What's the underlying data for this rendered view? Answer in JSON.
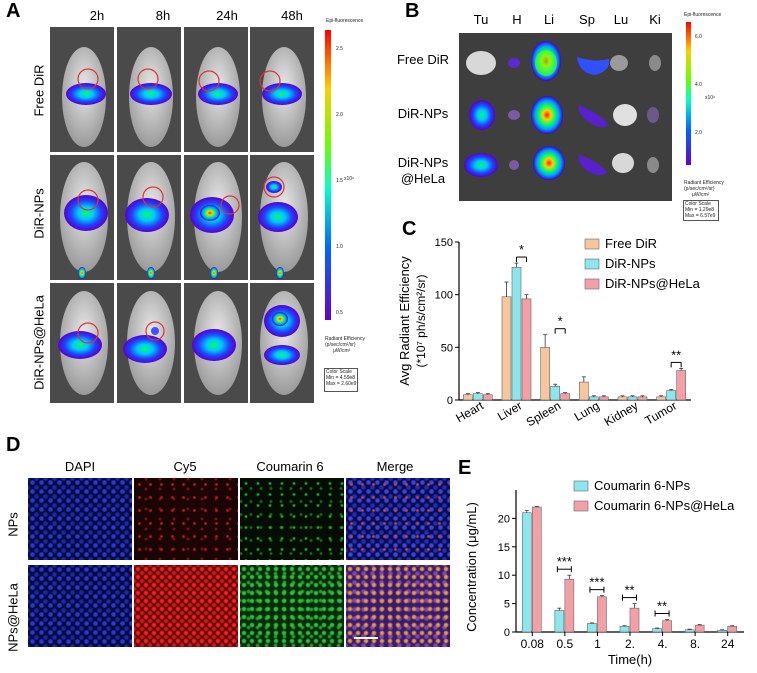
{
  "panel_labels": {
    "A": "A",
    "B": "B",
    "C": "C",
    "D": "D",
    "E": "E"
  },
  "panelA": {
    "times": [
      "2h",
      "8h",
      "24h",
      "48h"
    ],
    "rows": [
      "Free DiR",
      "DiR-NPs",
      "DiR-NPs@HeLa"
    ],
    "scale": {
      "title": "Epi-fluorescence",
      "ticks": [
        "2.5",
        "2.0",
        "1.5",
        "1.0",
        "0.5"
      ],
      "exponent": "x10⁹",
      "unit_line1": "Radiant Efficiency",
      "unit_line2": "(p/sec/cm²/sr)",
      "unit_line3": "μW/cm²",
      "colorscale_title": "Color Scale",
      "min": "Min = 4.59e8",
      "max": "Max = 2.60e9"
    }
  },
  "panelB": {
    "organs": [
      "Tu",
      "H",
      "Li",
      "Sp",
      "Lu",
      "Ki"
    ],
    "rows": [
      [
        "Free DiR"
      ],
      [
        "DiR-NPs"
      ],
      [
        "DiR-NPs",
        "@HeLa"
      ]
    ],
    "scale": {
      "title": "Epi-fluorescence",
      "ticks": [
        "6.0",
        "4.0",
        "2.0"
      ],
      "exponent": "x10⁹",
      "unit_line1": "Radiant Efficiency",
      "unit_line2": "(p/sec/cm²/sr)",
      "unit_line3": "μW/cm²",
      "colorscale_title": "Color Scale",
      "min": "Min = 1.29e8",
      "max": "Max = 6.57e9"
    }
  },
  "panelD": {
    "columns": [
      "DAPI",
      "Cy5",
      "Coumarin 6",
      "Merge"
    ],
    "rows": [
      "NPs",
      "NPs@HeLa"
    ]
  },
  "chart_data": [
    {
      "type": "bar",
      "panel": "C",
      "ylabel": "Avg Radiant Efficiency",
      "ylabel_unit": "(*10⁷ ph/s/cm²/sr)",
      "ylim": [
        0,
        150
      ],
      "yticks": [
        "0",
        "50",
        "100",
        "150"
      ],
      "categories": [
        "Heart",
        "Liver",
        "Spleen",
        "Lung",
        "Kidney",
        "Tumor"
      ],
      "series": [
        {
          "name": "Free DiR",
          "color": "#f7c69e",
          "values": [
            5,
            98,
            50,
            17,
            3,
            3
          ],
          "errors": [
            1,
            14,
            12,
            5,
            1,
            1
          ]
        },
        {
          "name": "DiR-NPs",
          "color": "#8be6ee",
          "values": [
            6,
            126,
            13,
            3,
            3,
            9
          ],
          "errors": [
            1,
            4,
            2,
            1,
            1,
            1
          ]
        },
        {
          "name": "DiR-NPs@HeLa",
          "color": "#f2a0a6",
          "values": [
            5,
            96,
            6,
            3,
            3,
            28
          ],
          "errors": [
            1,
            4,
            1,
            1,
            1,
            2
          ]
        }
      ],
      "significance": [
        {
          "category": "Liver",
          "label": "*"
        },
        {
          "category": "Spleen",
          "label": "*"
        },
        {
          "category": "Tumor",
          "label": "**"
        }
      ]
    },
    {
      "type": "bar",
      "panel": "E",
      "ylabel": "Concentration (μg/mL)",
      "xlabel": "Time(h)",
      "ylim": [
        0,
        25
      ],
      "yticks": [
        "0",
        "5",
        "10",
        "15",
        "20"
      ],
      "categories": [
        "0.08",
        "0.5",
        "1",
        "2.",
        "4.",
        "8.",
        "24"
      ],
      "series": [
        {
          "name": "Coumarin 6-NPs",
          "color": "#8be6ee",
          "values": [
            21.0,
            3.8,
            1.5,
            1.0,
            0.6,
            0.4,
            0.3
          ],
          "errors": [
            0.4,
            0.4,
            0.1,
            0.1,
            0.1,
            0.1,
            0.1
          ]
        },
        {
          "name": "Coumarin 6-NPs@HeLa",
          "color": "#f2a0a6",
          "values": [
            22.0,
            9.3,
            6.2,
            4.2,
            2.0,
            1.2,
            1.0
          ],
          "errors": [
            0.1,
            0.7,
            0.2,
            0.8,
            0.2,
            0.1,
            0.1
          ]
        }
      ],
      "significance": [
        {
          "category": "0.5",
          "label": "***"
        },
        {
          "category": "1",
          "label": "***"
        },
        {
          "category": "2.",
          "label": "**"
        },
        {
          "category": "4.",
          "label": "**"
        }
      ]
    }
  ]
}
